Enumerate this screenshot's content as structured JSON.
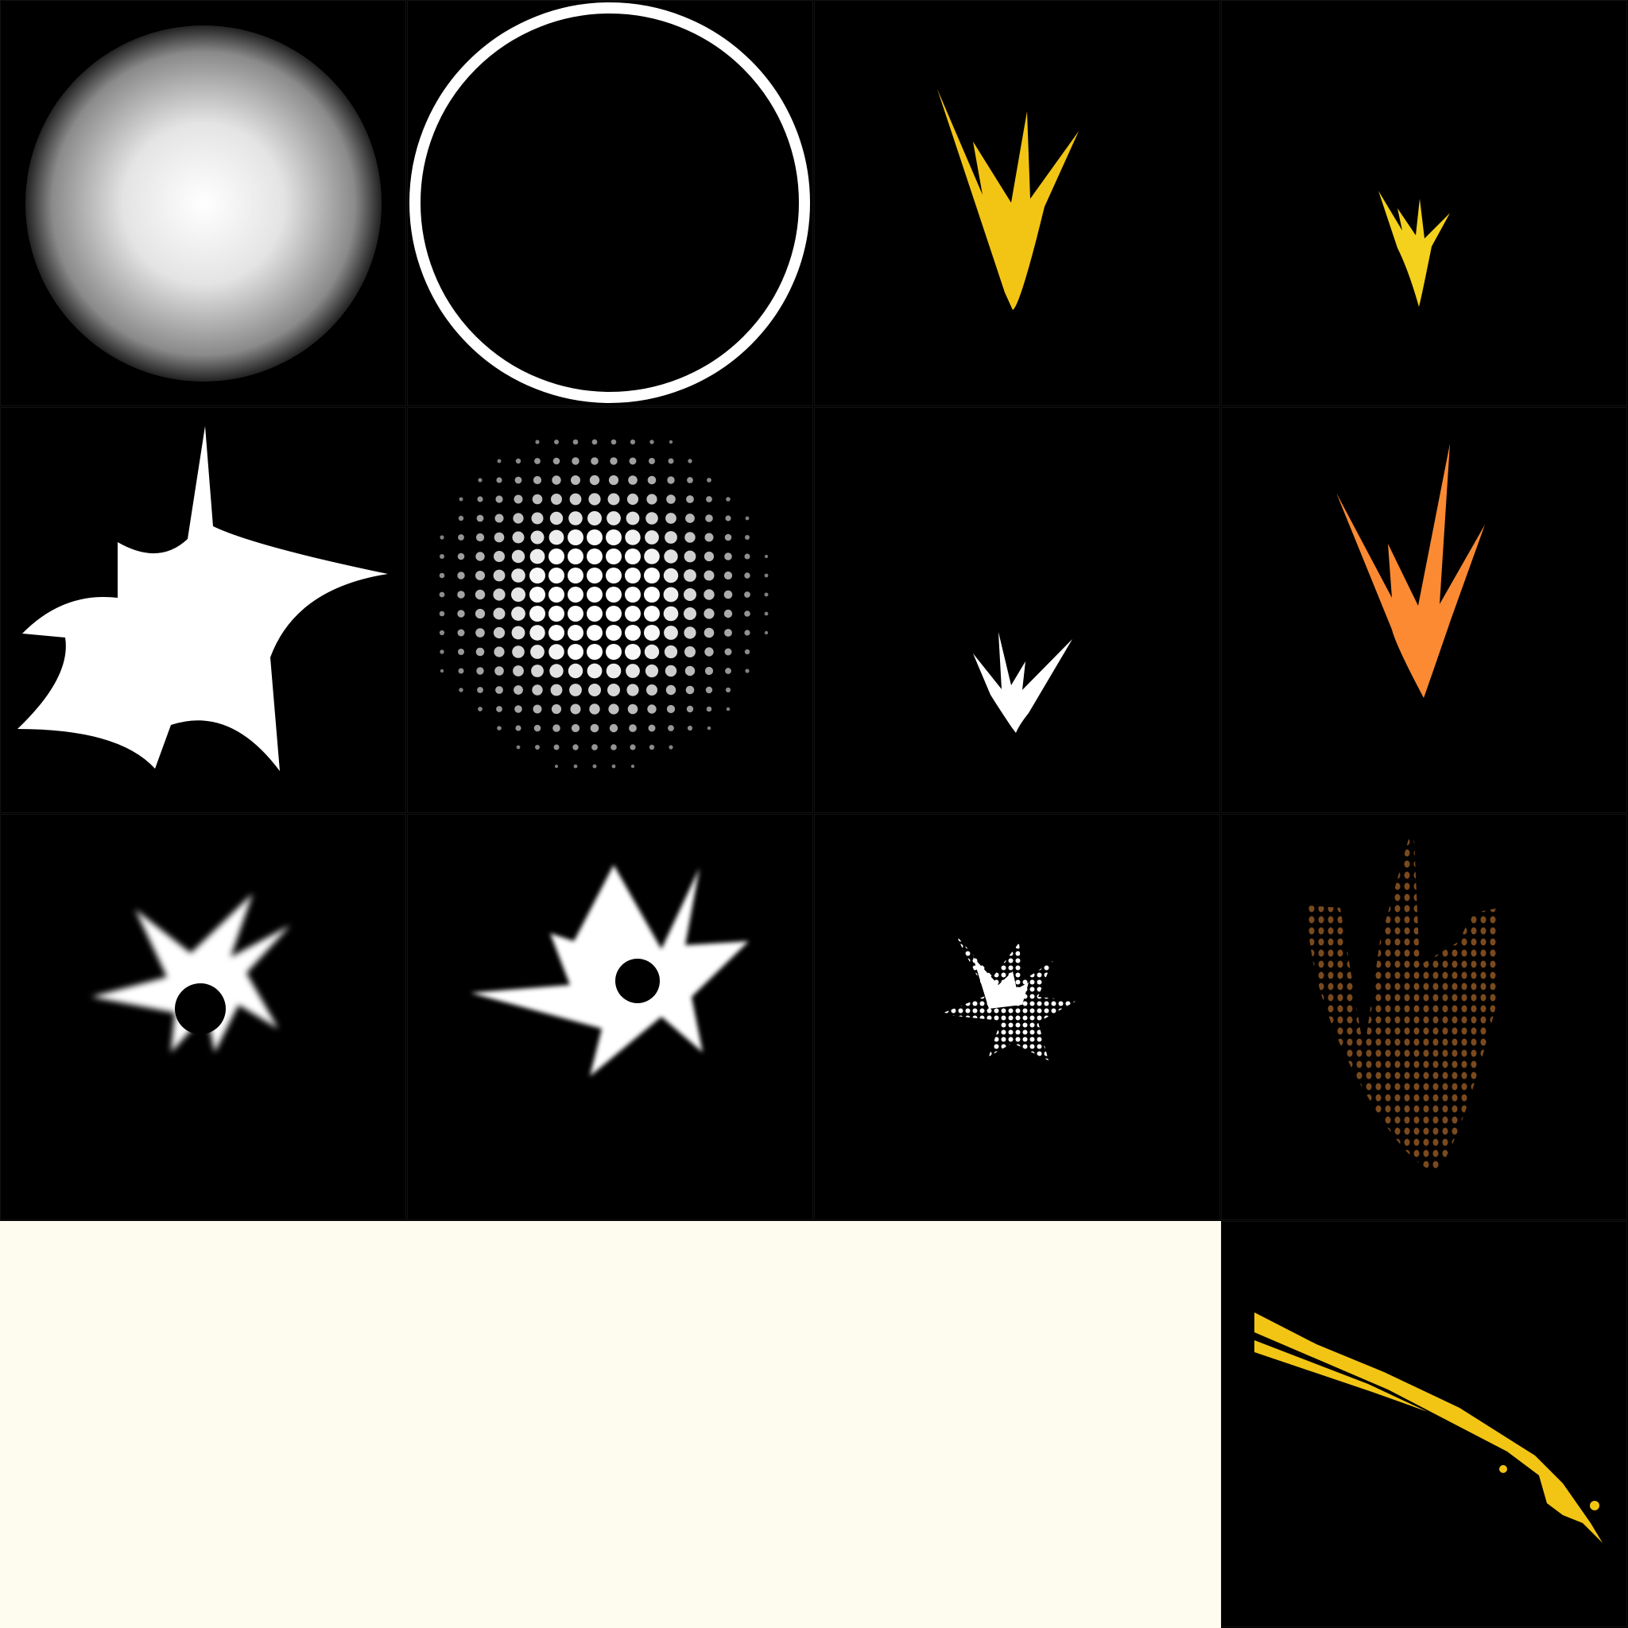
{
  "sprite_sheet": {
    "grid": "4x4",
    "tiles": [
      {
        "icon": "soft-glow-sphere-icon"
      },
      {
        "icon": "white-ring-icon"
      },
      {
        "icon": "yellow-flame-burst-icon"
      },
      {
        "icon": "small-yellow-flame-burst-icon"
      },
      {
        "icon": "white-splat-star-icon"
      },
      {
        "icon": "halftone-dot-sphere-icon"
      },
      {
        "icon": "small-white-flame-burst-icon"
      },
      {
        "icon": "orange-flame-burst-icon"
      },
      {
        "icon": "blurred-star-burst-icon"
      },
      {
        "icon": "large-blurred-star-burst-icon"
      },
      {
        "icon": "halftone-star-burst-icon"
      },
      {
        "icon": "halftone-orange-flame-icon"
      },
      {
        "icon": "yellow-streak-icon"
      }
    ],
    "colors": {
      "background": "#000000",
      "white": "#ffffff",
      "yellow": "#f2c514",
      "orange": "#fb8a33",
      "brown_dots": "#7a4a1e",
      "cream_panel": "#fefcee"
    }
  }
}
